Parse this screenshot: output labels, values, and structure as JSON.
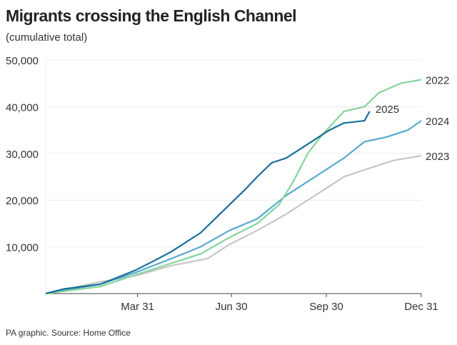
{
  "chart_data": {
    "type": "line",
    "title": "Migrants crossing the English Channel",
    "subtitle": "(cumulative total)",
    "source": "PA graphic. Source: Home Office",
    "ylim": [
      0,
      50000
    ],
    "yticks": [
      10000,
      20000,
      30000,
      40000,
      50000
    ],
    "ytick_labels": [
      "10,000",
      "20,000",
      "30,000",
      "40,000",
      "50,000"
    ],
    "xticks": [
      "03-31",
      "06-30",
      "09-30",
      "12-31"
    ],
    "xtick_labels": [
      "Mar 31",
      "Jun 30",
      "Sep 30",
      "Dec 31"
    ],
    "grid": "horizontal",
    "series": [
      {
        "name": "2023",
        "color": "#c6c6c6",
        "points": [
          [
            "01-01",
            0
          ],
          [
            "02-23",
            2500
          ],
          [
            "03-29",
            3800
          ],
          [
            "05-03",
            6000
          ],
          [
            "06-07",
            7500
          ],
          [
            "06-28",
            10500
          ],
          [
            "07-25",
            13500
          ],
          [
            "08-22",
            17000
          ],
          [
            "09-19",
            21000
          ],
          [
            "10-17",
            25000
          ],
          [
            "11-13",
            27000
          ],
          [
            "12-04",
            28500
          ],
          [
            "12-31",
            29500
          ]
        ]
      },
      {
        "name": "2024",
        "color": "#56a9cf",
        "points": [
          [
            "01-01",
            0
          ],
          [
            "02-23",
            2000
          ],
          [
            "03-29",
            4500
          ],
          [
            "05-03",
            7500
          ],
          [
            "05-31",
            10000
          ],
          [
            "06-28",
            13500
          ],
          [
            "07-25",
            16000
          ],
          [
            "08-22",
            21000
          ],
          [
            "09-19",
            25000
          ],
          [
            "10-17",
            29000
          ],
          [
            "11-06",
            32500
          ],
          [
            "11-27",
            33500
          ],
          [
            "12-18",
            35000
          ],
          [
            "12-31",
            37000
          ]
        ]
      },
      {
        "name": "2022",
        "color": "#86d49d",
        "points": [
          [
            "01-01",
            0
          ],
          [
            "02-23",
            1500
          ],
          [
            "03-29",
            4000
          ],
          [
            "05-03",
            6500
          ],
          [
            "05-31",
            8500
          ],
          [
            "06-28",
            12000
          ],
          [
            "07-25",
            15000
          ],
          [
            "08-15",
            19000
          ],
          [
            "08-29",
            24000
          ],
          [
            "09-12",
            30000
          ],
          [
            "09-26",
            34000
          ],
          [
            "10-17",
            39000
          ],
          [
            "11-06",
            40000
          ],
          [
            "11-20",
            43000
          ],
          [
            "12-11",
            45000
          ],
          [
            "12-31",
            45800
          ]
        ]
      },
      {
        "name": "2025",
        "color": "#176f99",
        "points": [
          [
            "01-01",
            0
          ],
          [
            "01-19",
            1000
          ],
          [
            "02-23",
            2000
          ],
          [
            "03-12",
            3500
          ],
          [
            "03-29",
            5000
          ],
          [
            "04-16",
            7000
          ],
          [
            "05-03",
            9000
          ],
          [
            "05-17",
            11000
          ],
          [
            "05-31",
            13000
          ],
          [
            "06-14",
            16000
          ],
          [
            "06-28",
            19000
          ],
          [
            "07-12",
            22000
          ],
          [
            "07-25",
            25000
          ],
          [
            "08-08",
            28000
          ],
          [
            "08-22",
            29000
          ],
          [
            "09-05",
            31000
          ],
          [
            "09-19",
            33000
          ],
          [
            "10-03",
            35000
          ],
          [
            "10-17",
            36500
          ],
          [
            "11-06",
            37000
          ],
          [
            "11-11",
            39000
          ]
        ]
      }
    ]
  }
}
